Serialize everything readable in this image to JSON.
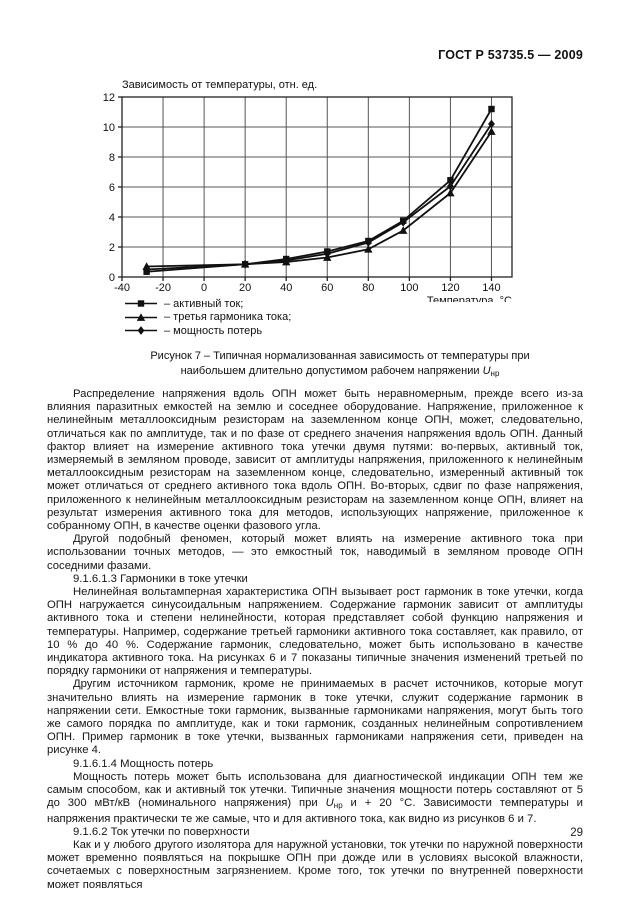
{
  "page": {
    "header": "ГОСТ Р 53735.5 — 2009",
    "page_number": "29"
  },
  "chart_data": {
    "type": "line",
    "title": "Зависимость от температуры, отн. ед.",
    "xlabel": "Температура, °C",
    "ylabel": "",
    "xlim": [
      -40,
      150
    ],
    "ylim": [
      0,
      12
    ],
    "x_ticks": [
      -40,
      -20,
      0,
      20,
      40,
      60,
      80,
      100,
      120,
      140
    ],
    "y_ticks": [
      0,
      2,
      4,
      6,
      8,
      10,
      12
    ],
    "grid": true,
    "legend_position": "below-left",
    "x": [
      -28,
      20,
      40,
      60,
      80,
      97,
      120,
      140
    ],
    "series": [
      {
        "name": "активный ток",
        "marker": "square",
        "values": [
          0.35,
          0.85,
          1.2,
          1.7,
          2.4,
          3.75,
          6.45,
          11.2
        ]
      },
      {
        "name": "третья гармоника тока",
        "marker": "triangle",
        "values": [
          0.7,
          0.85,
          1.0,
          1.3,
          1.85,
          3.1,
          5.6,
          9.7
        ]
      },
      {
        "name": "мощность потерь",
        "marker": "diamond",
        "values": [
          0.5,
          0.85,
          1.1,
          1.55,
          2.3,
          3.65,
          6.05,
          10.2
        ]
      }
    ],
    "legend": [
      {
        "marker": "square",
        "label": "– активный ток;"
      },
      {
        "marker": "triangle",
        "label": "– третья гармоника тока;"
      },
      {
        "marker": "diamond",
        "label": "– мощность потерь"
      }
    ],
    "line_color": "#111111",
    "grid_color": "#555555"
  },
  "figure_caption": {
    "line1": "Рисунок 7 – Типичная нормализованная зависимость от температуры при",
    "line2_text": "наибольшем длительно допустимом рабочем напряжении ",
    "u_symbol": "U",
    "u_subscript": "нр"
  },
  "body": {
    "paragraphs": [
      {
        "kind": "paragraph",
        "segments": [
          {
            "text": "Распределение напряжения вдоль ОПН может быть неравномерным, прежде всего из-за влияния паразитных емкостей на землю и соседнее оборудование. Напряжение, приложенное к нелинейным металлооксидным резисторам на заземленном конце ОПН, может, следовательно, отличаться как по амплитуде, так и по фазе от среднего значения напряжения вдоль ОПН. Данный фактор влияет на измерение активного тока утечки двумя путями: во-первых, активный ток, измеряемый в земляном проводе, зависит от амплитуды напряжения, приложенного к нелинейным металлооксидным резисторам на заземленном конце, следовательно, измеренный активный ток может отличаться от среднего активного тока вдоль ОПН. Во-вторых, сдвиг по фазе напряжения, приложенного к нелинейным металлооксидным резисторам на заземленном конце ОПН, влияет на результат измерения активного тока для методов, использующих напряжение, приложенное к собранному ОПН, в качестве оценки фазового угла."
          }
        ]
      },
      {
        "kind": "paragraph",
        "segments": [
          {
            "text": "Другой подобный феномен, который может влиять на измерение активного тока при использовании точных методов, — это емкостный ток, наводимый в земляном проводе ОПН соседними фазами."
          }
        ]
      },
      {
        "kind": "heading",
        "segments": [
          {
            "text": "9.1.6.1.3 Гармоники в токе утечки"
          }
        ]
      },
      {
        "kind": "paragraph",
        "segments": [
          {
            "text": "Нелинейная вольтамперная характеристика ОПН вызывает рост гармоник в токе утечки, когда ОПН нагружается синусоидальным напряжением. Содержание гармоник зависит от амплитуды активного тока и степени нелинейности, которая представляет собой функцию напряжения и температуры. Например, содержание третьей гармоники активного тока составляет, как правило, от 10 % до 40 %. Содержание гармоник, следовательно, может быть использовано в качестве индикатора активного тока. На рисунках 6 и 7 показаны типичные значения изменений третьей по порядку гармоники от напряжения и температуры."
          }
        ]
      },
      {
        "kind": "paragraph",
        "segments": [
          {
            "text": "Другим источником гармоник, кроме не принимаемых в расчет источников, которые могут значительно влиять на измерение гармоник в токе утечки, служит содержание гармоник в напряжении сети. Емкостные токи гармоник, вызванные гармониками напряжения, могут быть того же самого порядка по амплитуде, как и токи гармоник, созданных нелинейным сопротивлением ОПН. Пример гармоник в токе утечки, вызванных гармониками напряжения сети, приведен на рисунке 4."
          }
        ]
      },
      {
        "kind": "heading",
        "segments": [
          {
            "text": "9.1.6.1.4 Мощность потерь"
          }
        ]
      },
      {
        "kind": "paragraph",
        "segments": [
          {
            "text": "Мощность потерь может быть использована для диагностической индикации ОПН тем же самым способом, как и активный ток утечки. Типичные значения мощности потерь составляют от 5 до 300 мВт/кВ (номинального напряжения) при "
          },
          {
            "var": "U",
            "sub": "нр"
          },
          {
            "text": " и + 20 °C. Зависимости температуры и напряжения практически те же самые, что и для активного тока, как видно из рисунков 6 и 7."
          }
        ]
      },
      {
        "kind": "heading",
        "segments": [
          {
            "text": "9.1.6.2 Ток утечки по поверхности"
          }
        ]
      },
      {
        "kind": "paragraph",
        "segments": [
          {
            "text": "Как и у любого другого изолятора для наружной установки, ток утечки по наружной поверхности может временно появляться на покрышке ОПН при дожде или в условиях высокой влажности, сочетаемых с поверхностным загрязнением. Кроме того, ток утечки по внутренней поверхности может появляться"
          }
        ]
      }
    ]
  }
}
